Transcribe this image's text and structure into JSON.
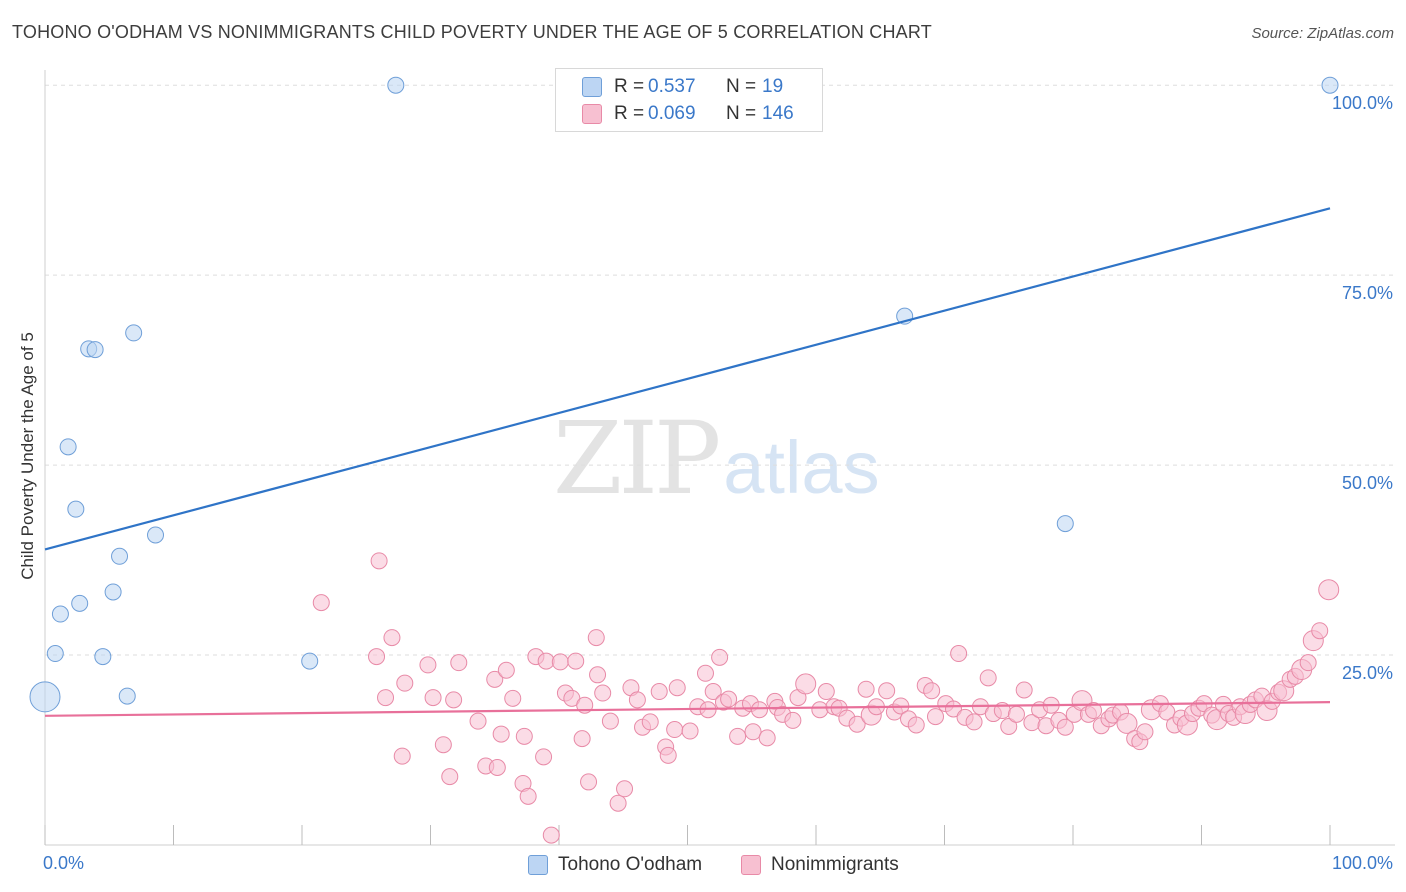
{
  "header": {
    "title": "TOHONO O'ODHAM VS NONIMMIGRANTS CHILD POVERTY UNDER THE AGE OF 5 CORRELATION CHART",
    "source": "Source: ZipAtlas.com"
  },
  "watermark": {
    "zip": "ZIP",
    "atlas": "atlas"
  },
  "legend": {
    "r_label": "R =",
    "n_label": "N =",
    "items": [
      {
        "name": "Tohono O'odham",
        "r": "0.537",
        "n": "19"
      },
      {
        "name": "Nonimmigrants",
        "r": "0.069",
        "n": "146"
      }
    ]
  },
  "colors": {
    "blue_fill": "#bcd5f3",
    "blue_stroke": "#6f9fd8",
    "blue_line": "#2f74c7",
    "pink_fill": "#f7c0d1",
    "pink_stroke": "#e88aa7",
    "pink_line": "#e8709a",
    "tick_label": "#3a78c9",
    "grid": "#dedede"
  },
  "chart_data": {
    "type": "scatter",
    "title": "TOHONO O'ODHAM VS NONIMMIGRANTS CHILD POVERTY UNDER THE AGE OF 5 CORRELATION CHART",
    "xlabel": "",
    "ylabel": "Child Poverty Under the Age of 5",
    "xlim": [
      0,
      100
    ],
    "ylim": [
      0,
      102
    ],
    "x_tick_labels": [
      {
        "value": 0,
        "label": "0.0%"
      },
      {
        "value": 100,
        "label": "100.0%"
      }
    ],
    "y_tick_labels": [
      {
        "value": 25,
        "label": "25.0%"
      },
      {
        "value": 50,
        "label": "50.0%"
      },
      {
        "value": 75,
        "label": "75.0%"
      },
      {
        "value": 100,
        "label": "100.0%"
      }
    ],
    "series": [
      {
        "name": "Tohono O'odham",
        "r": 0.537,
        "n": 19,
        "trend": {
          "x": [
            0,
            100
          ],
          "y": [
            38.9,
            83.8
          ]
        },
        "points": [
          [
            0.0,
            19.5,
            3
          ],
          [
            0.8,
            25.2,
            1
          ],
          [
            1.2,
            30.4,
            1
          ],
          [
            1.8,
            52.4,
            1
          ],
          [
            2.4,
            44.2,
            1
          ],
          [
            2.7,
            31.8,
            1
          ],
          [
            3.4,
            65.3,
            1
          ],
          [
            3.9,
            65.2,
            1
          ],
          [
            4.5,
            24.8,
            1
          ],
          [
            5.3,
            33.3,
            1
          ],
          [
            5.8,
            38.0,
            1
          ],
          [
            6.4,
            19.6,
            1
          ],
          [
            6.9,
            67.4,
            1
          ],
          [
            8.6,
            40.8,
            1
          ],
          [
            20.6,
            24.2,
            1
          ],
          [
            27.3,
            100.0,
            1
          ],
          [
            66.9,
            69.6,
            1
          ],
          [
            79.4,
            42.3,
            1
          ],
          [
            100.0,
            100.0,
            1
          ]
        ]
      },
      {
        "name": "Nonimmigrants",
        "r": 0.069,
        "n": 146,
        "trend": {
          "x": [
            0,
            100
          ],
          "y": [
            17.0,
            18.8
          ]
        },
        "points": [
          [
            26.0,
            37.4,
            1
          ],
          [
            21.5,
            31.9,
            1
          ],
          [
            25.8,
            24.8,
            1
          ],
          [
            26.5,
            19.4,
            1
          ],
          [
            27.0,
            27.3,
            1
          ],
          [
            28.0,
            21.3,
            1
          ],
          [
            27.8,
            11.7,
            1
          ],
          [
            29.8,
            23.7,
            1
          ],
          [
            30.2,
            19.4,
            1
          ],
          [
            31.0,
            13.2,
            1
          ],
          [
            31.5,
            9.0,
            1
          ],
          [
            31.8,
            19.1,
            1
          ],
          [
            32.2,
            24.0,
            1
          ],
          [
            33.7,
            16.3,
            1
          ],
          [
            34.3,
            10.4,
            1
          ],
          [
            35.0,
            21.8,
            1
          ],
          [
            35.5,
            14.6,
            1
          ],
          [
            35.9,
            23.0,
            1
          ],
          [
            35.2,
            10.2,
            1
          ],
          [
            36.4,
            19.3,
            1
          ],
          [
            37.2,
            8.1,
            1
          ],
          [
            37.6,
            6.4,
            1
          ],
          [
            37.3,
            14.3,
            1
          ],
          [
            38.2,
            24.8,
            1
          ],
          [
            38.8,
            11.6,
            1
          ],
          [
            39.0,
            24.2,
            1
          ],
          [
            39.4,
            1.3,
            1
          ],
          [
            40.1,
            24.1,
            1
          ],
          [
            40.5,
            20.0,
            1
          ],
          [
            41.0,
            19.3,
            1
          ],
          [
            41.3,
            24.2,
            1
          ],
          [
            41.8,
            14.0,
            1
          ],
          [
            42.0,
            18.4,
            1
          ],
          [
            42.3,
            8.3,
            1
          ],
          [
            42.9,
            27.3,
            1
          ],
          [
            43.0,
            22.4,
            1
          ],
          [
            43.4,
            20.0,
            1
          ],
          [
            44.0,
            16.3,
            1
          ],
          [
            44.6,
            5.5,
            1
          ],
          [
            45.1,
            7.4,
            1
          ],
          [
            45.6,
            20.7,
            1
          ],
          [
            46.1,
            19.1,
            1
          ],
          [
            46.5,
            15.5,
            1
          ],
          [
            47.1,
            16.2,
            1
          ],
          [
            47.8,
            20.2,
            1
          ],
          [
            48.3,
            12.9,
            1
          ],
          [
            48.5,
            11.8,
            1
          ],
          [
            49.0,
            15.2,
            1
          ],
          [
            49.2,
            20.7,
            1
          ],
          [
            50.2,
            15.0,
            1
          ],
          [
            50.8,
            18.2,
            1
          ],
          [
            51.4,
            22.6,
            1
          ],
          [
            51.6,
            17.8,
            1
          ],
          [
            52.0,
            20.2,
            1
          ],
          [
            52.5,
            24.7,
            1
          ],
          [
            52.8,
            18.8,
            1
          ],
          [
            53.2,
            19.2,
            1
          ],
          [
            53.9,
            14.3,
            1
          ],
          [
            54.3,
            18.0,
            1
          ],
          [
            54.9,
            18.6,
            1
          ],
          [
            55.1,
            14.9,
            1
          ],
          [
            55.6,
            17.8,
            1
          ],
          [
            56.2,
            14.1,
            1
          ],
          [
            56.8,
            18.9,
            1
          ],
          [
            57.0,
            18.1,
            1
          ],
          [
            57.4,
            17.2,
            1
          ],
          [
            58.2,
            16.4,
            1
          ],
          [
            58.6,
            19.4,
            1
          ],
          [
            59.2,
            21.2,
            2
          ],
          [
            60.3,
            17.8,
            1
          ],
          [
            60.8,
            20.2,
            1
          ],
          [
            61.4,
            18.2,
            1
          ],
          [
            61.8,
            18.0,
            1
          ],
          [
            62.4,
            16.7,
            1
          ],
          [
            63.2,
            15.9,
            1
          ],
          [
            63.9,
            20.5,
            1
          ],
          [
            64.3,
            17.1,
            2
          ],
          [
            64.7,
            18.2,
            1
          ],
          [
            65.5,
            20.3,
            1
          ],
          [
            66.1,
            17.5,
            1
          ],
          [
            66.6,
            18.3,
            1
          ],
          [
            67.2,
            16.6,
            1
          ],
          [
            67.8,
            15.8,
            1
          ],
          [
            68.5,
            21.0,
            1
          ],
          [
            69.0,
            20.3,
            1
          ],
          [
            69.3,
            16.9,
            1
          ],
          [
            70.1,
            18.6,
            1
          ],
          [
            70.7,
            17.9,
            1
          ],
          [
            71.1,
            25.2,
            1
          ],
          [
            71.6,
            16.8,
            1
          ],
          [
            72.3,
            16.2,
            1
          ],
          [
            72.8,
            18.2,
            1
          ],
          [
            73.4,
            22.0,
            1
          ],
          [
            73.8,
            17.3,
            1
          ],
          [
            74.5,
            17.7,
            1
          ],
          [
            75.0,
            15.6,
            1
          ],
          [
            75.6,
            17.2,
            1
          ],
          [
            76.2,
            20.4,
            1
          ],
          [
            76.8,
            16.1,
            1
          ],
          [
            77.4,
            17.8,
            1
          ],
          [
            77.9,
            15.7,
            1
          ],
          [
            78.3,
            18.4,
            1
          ],
          [
            78.9,
            16.4,
            1
          ],
          [
            79.4,
            15.5,
            1
          ],
          [
            80.1,
            17.2,
            1
          ],
          [
            80.7,
            19.0,
            2
          ],
          [
            81.2,
            17.2,
            1
          ],
          [
            81.6,
            17.7,
            1
          ],
          [
            82.2,
            15.7,
            1
          ],
          [
            82.8,
            16.6,
            1
          ],
          [
            83.1,
            17.1,
            1
          ],
          [
            83.7,
            17.5,
            1
          ],
          [
            84.2,
            16.0,
            2
          ],
          [
            84.8,
            14.0,
            1
          ],
          [
            85.2,
            13.6,
            1
          ],
          [
            85.6,
            14.9,
            1
          ],
          [
            86.1,
            17.8,
            2
          ],
          [
            86.8,
            18.6,
            1
          ],
          [
            87.3,
            17.5,
            1
          ],
          [
            87.9,
            15.8,
            1
          ],
          [
            88.4,
            16.7,
            1
          ],
          [
            88.9,
            15.8,
            2
          ],
          [
            89.3,
            17.3,
            1
          ],
          [
            89.8,
            18.0,
            1
          ],
          [
            90.2,
            18.6,
            1
          ],
          [
            90.8,
            17.1,
            1
          ],
          [
            91.2,
            16.5,
            2
          ],
          [
            91.7,
            18.5,
            1
          ],
          [
            92.1,
            17.3,
            1
          ],
          [
            92.5,
            16.8,
            1
          ],
          [
            93.0,
            18.2,
            1
          ],
          [
            93.4,
            17.3,
            2
          ],
          [
            93.8,
            18.5,
            1
          ],
          [
            94.2,
            19.1,
            1
          ],
          [
            94.7,
            19.6,
            1
          ],
          [
            95.1,
            17.7,
            2
          ],
          [
            95.5,
            18.9,
            1
          ],
          [
            96.0,
            20.1,
            1
          ],
          [
            96.4,
            20.3,
            2
          ],
          [
            96.9,
            21.8,
            1
          ],
          [
            97.3,
            22.2,
            1
          ],
          [
            97.8,
            23.1,
            2
          ],
          [
            98.3,
            24.0,
            1
          ],
          [
            98.7,
            26.9,
            2
          ],
          [
            99.2,
            28.2,
            1
          ],
          [
            99.9,
            33.6,
            2
          ]
        ]
      }
    ]
  }
}
